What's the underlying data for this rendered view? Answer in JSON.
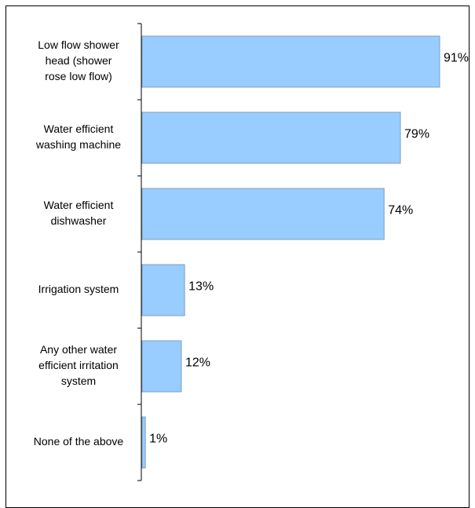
{
  "chart_data": {
    "type": "bar",
    "orientation": "horizontal",
    "categories": [
      "Low flow shower head (shower rose low flow)",
      "Water efficient washing machine",
      "Water efficient dishwasher",
      "Irrigation system",
      "Any other water efficient irritation system",
      "None of the above"
    ],
    "category_label_lines": [
      [
        "Low flow shower",
        "head (shower",
        "rose low flow)"
      ],
      [
        "Water efficient",
        "washing machine"
      ],
      [
        "Water efficient",
        "dishwasher"
      ],
      [
        "Irrigation system"
      ],
      [
        "Any other water",
        "efficient irritation",
        "system"
      ],
      [
        "None of the above"
      ]
    ],
    "values": [
      91,
      79,
      74,
      13,
      12,
      1
    ],
    "value_labels": [
      "91%",
      "79%",
      "74%",
      "13%",
      "12%",
      "1%"
    ],
    "unit": "%",
    "xlim": [
      0,
      100
    ],
    "grid": false,
    "legend": "none",
    "title": "",
    "xlabel": "",
    "ylabel": "",
    "colors": {
      "bar_fill": "#99ccff",
      "bar_stroke": "#7f9fbf",
      "axis": "#000000",
      "text": "#000000",
      "frame": "#000000"
    }
  }
}
